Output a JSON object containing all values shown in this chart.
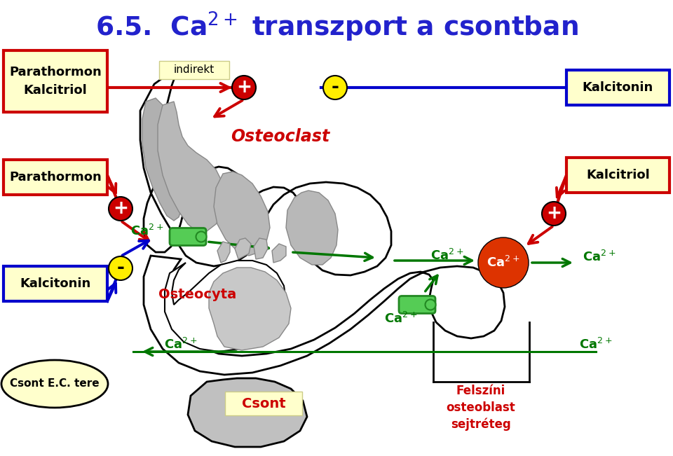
{
  "bg_color": "#ffffff",
  "title_color": "#2222cc",
  "red": "#cc0000",
  "green": "#007700",
  "blue": "#0000cc",
  "yellow_bg": "#ffffcc",
  "title": "6.5.  Ca$^{2+}$ transzport a csontban",
  "label_para_kalci": "Parathormon\nKalcitriol",
  "label_para": "Parathormon",
  "label_kalcitonin": "Kalcitonin",
  "label_kalcitriol": "Kalcitriol",
  "label_osteoclast": "Osteoclast",
  "label_osteocyta": "Osteocyta",
  "label_csont": "Csont",
  "label_csont_ec": "Csont E.C. tere",
  "label_felszini": "Felszíni\nosteoblast\nsejtréteg",
  "label_indirekt": "indirekt"
}
